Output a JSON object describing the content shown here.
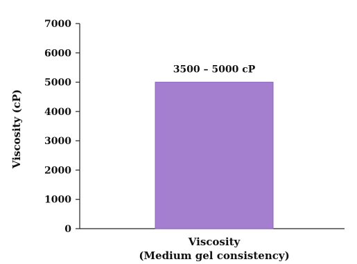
{
  "chart_data": {
    "type": "bar",
    "categories": [
      "Viscosity"
    ],
    "category_sublabels": [
      "(Medium gel consistency)"
    ],
    "values": [
      5000
    ],
    "data_labels": [
      "3500 – 5000 cP"
    ],
    "ylabel": "Viscosity (cP)",
    "xlabel": "",
    "ylim": [
      0,
      7000
    ],
    "yticks": [
      0,
      1000,
      2000,
      3000,
      4000,
      5000,
      6000,
      7000
    ],
    "grid": false,
    "legend": "none",
    "colors": {
      "bar_fill": "#a57fcf",
      "bar_stroke": "#8e66bd",
      "axis": "#222222",
      "text": "#111111"
    }
  }
}
